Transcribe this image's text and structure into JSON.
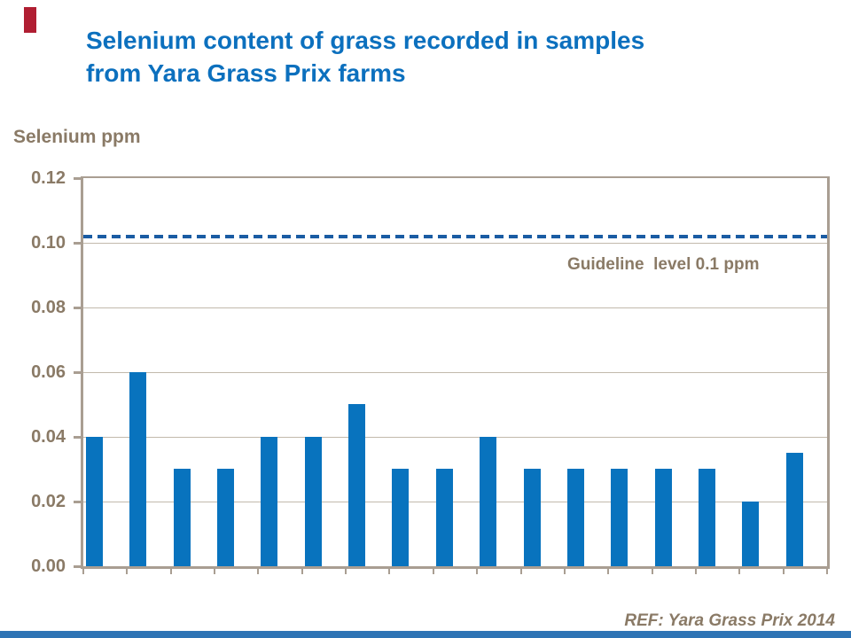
{
  "slide": {
    "title": "Selenium content of grass recorded in samples\nfrom Yara Grass Prix farms",
    "title_color": "#0C70BE",
    "accent_bar_color": "#B01E32",
    "footer_bar_color": "#2E74B5",
    "reference": "REF: Yara Grass Prix 2014"
  },
  "chart_data": {
    "type": "bar",
    "title": "Selenium content of grass recorded in samples from Yara Grass Prix farms",
    "ylabel": "Selenium ppm",
    "xlabel": "",
    "n_bars": 17,
    "values": [
      0.04,
      0.06,
      0.03,
      0.03,
      0.04,
      0.04,
      0.05,
      0.03,
      0.03,
      0.04,
      0.03,
      0.03,
      0.03,
      0.03,
      0.03,
      0.02,
      0.035
    ],
    "x_tick_labels": [],
    "ylim": [
      0,
      0.12
    ],
    "ytick_step": 0.02,
    "ytick_labels": [
      "0.00",
      "0.02",
      "0.04",
      "0.06",
      "0.08",
      "0.10",
      "0.12"
    ],
    "guideline": {
      "value": 0.1,
      "label": "Guideline  level 0.1 ppm",
      "line_style": "dashed",
      "line_color": "#1A5CA3"
    },
    "bar_color": "#0873BE",
    "axis_color": "#A99E92",
    "gridline_color": "#C2B9AC",
    "text_color": "#8A7A66",
    "grid": true,
    "legend": false
  }
}
